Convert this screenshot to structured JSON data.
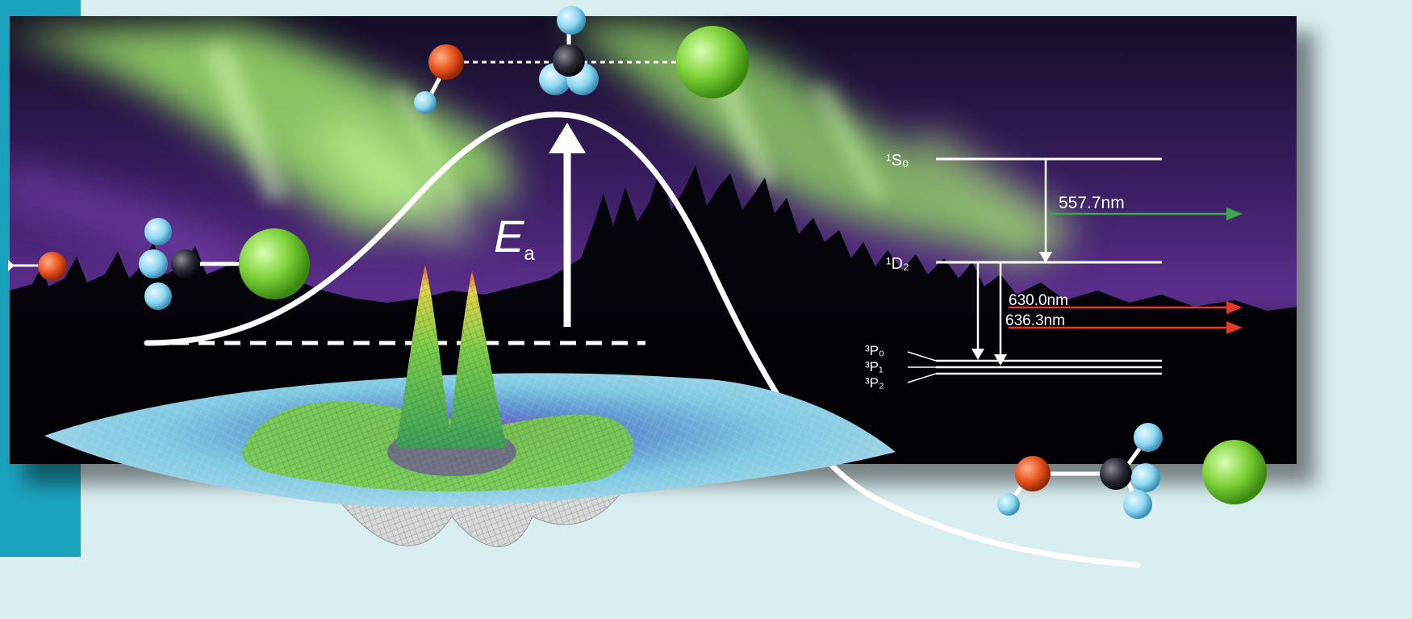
{
  "labels": {
    "activation_energy": "E",
    "activation_energy_sub": "a",
    "level_1S0": "¹S₀",
    "level_1D2": "¹D₂",
    "level_3P0": "³P₀",
    "level_3P1": "³P₁",
    "level_3P2": "³P₂",
    "wavelength_green": "557.7nm",
    "wavelength_red_1": "630.0nm",
    "wavelength_red_2": "636.3nm"
  },
  "colors": {
    "background": "#d9eef0",
    "side_bar": "#1ba3be",
    "sky_purple": "#5b2e8c",
    "aurora_green": "#9be36a",
    "oxygen_atom": "#e8501c",
    "hydrogen_atom": "#8ed8f2",
    "carbon_atom": "#2a2a35",
    "chlorine_atom": "#7fd23a",
    "green_line": "#3aa84a",
    "red_line": "#e23a2a"
  }
}
